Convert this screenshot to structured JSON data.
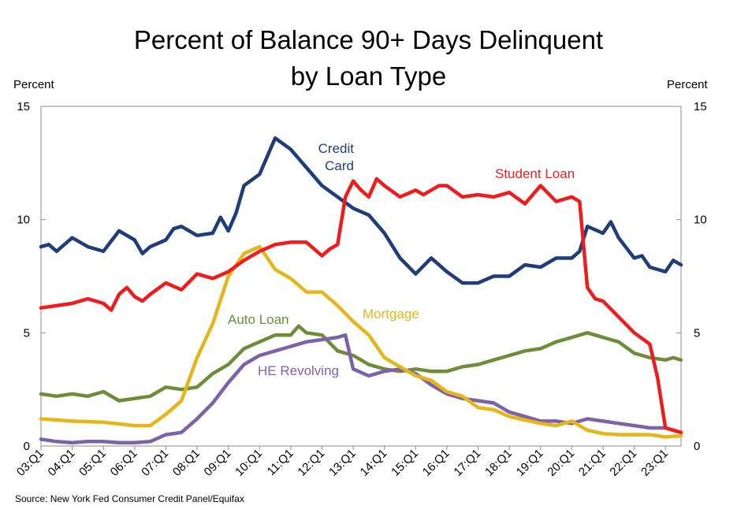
{
  "title_line1": "Percent of Balance 90+ Days Delinquent",
  "title_line2": "by Loan Type",
  "left_axis_unit": "Percent",
  "right_axis_unit": "Percent",
  "source": "Source: New York Fed Consumer Credit Panel/Equifax",
  "chart_data": {
    "type": "line",
    "title": "Percent of Balance 90+ Days Delinquent by Loan Type",
    "ylabel": "Percent",
    "y2label": "Percent",
    "ylim": [
      0,
      15
    ],
    "yticks": [
      0,
      5,
      10,
      15
    ],
    "xlim": [
      "03:Q1",
      "23:Q3"
    ],
    "xticks": [
      "03:Q1",
      "04:Q1",
      "05:Q1",
      "06:Q1",
      "07:Q1",
      "08:Q1",
      "09:Q1",
      "10:Q1",
      "11:Q1",
      "12:Q1",
      "13:Q1",
      "14:Q1",
      "15:Q1",
      "16:Q1",
      "17:Q1",
      "18:Q1",
      "19:Q1",
      "20:Q1",
      "21:Q1",
      "22:Q1",
      "23:Q1"
    ],
    "grid": false,
    "series": [
      {
        "name": "Student Loan",
        "color": "#ee1c1c",
        "points": [
          [
            "03:Q1",
            6.1
          ],
          [
            "03:Q3",
            6.2
          ],
          [
            "04:Q1",
            6.3
          ],
          [
            "04:Q3",
            6.5
          ],
          [
            "05:Q1",
            6.3
          ],
          [
            "05:Q2",
            6.0
          ],
          [
            "05:Q3",
            6.7
          ],
          [
            "05:Q4",
            7.0
          ],
          [
            "06:Q1",
            6.6
          ],
          [
            "06:Q2",
            6.4
          ],
          [
            "06:Q3",
            6.7
          ],
          [
            "07:Q1",
            7.2
          ],
          [
            "07:Q3",
            6.9
          ],
          [
            "08:Q1",
            7.6
          ],
          [
            "08:Q3",
            7.4
          ],
          [
            "09:Q1",
            7.7
          ],
          [
            "09:Q3",
            8.2
          ],
          [
            "10:Q1",
            8.6
          ],
          [
            "10:Q3",
            8.9
          ],
          [
            "11:Q1",
            9.0
          ],
          [
            "11:Q3",
            9.0
          ],
          [
            "12:Q1",
            8.4
          ],
          [
            "12:Q2",
            8.7
          ],
          [
            "12:Q3",
            8.9
          ],
          [
            "12:Q4",
            11.0
          ],
          [
            "13:Q1",
            11.7
          ],
          [
            "13:Q2",
            11.3
          ],
          [
            "13:Q3",
            11.0
          ],
          [
            "13:Q4",
            11.8
          ],
          [
            "14:Q1",
            11.5
          ],
          [
            "14:Q3",
            11.0
          ],
          [
            "15:Q1",
            11.3
          ],
          [
            "15:Q2",
            11.1
          ],
          [
            "15:Q4",
            11.5
          ],
          [
            "16:Q1",
            11.5
          ],
          [
            "16:Q3",
            11.0
          ],
          [
            "17:Q1",
            11.1
          ],
          [
            "17:Q3",
            11.0
          ],
          [
            "18:Q1",
            11.2
          ],
          [
            "18:Q3",
            10.7
          ],
          [
            "19:Q1",
            11.5
          ],
          [
            "19:Q3",
            10.8
          ],
          [
            "20:Q1",
            11.0
          ],
          [
            "20:Q2",
            10.8
          ],
          [
            "20:Q3",
            7.0
          ],
          [
            "20:Q4",
            6.5
          ],
          [
            "21:Q1",
            6.4
          ],
          [
            "21:Q3",
            5.7
          ],
          [
            "22:Q1",
            5.0
          ],
          [
            "22:Q3",
            4.5
          ],
          [
            "22:Q4",
            3.0
          ],
          [
            "23:Q1",
            0.8
          ],
          [
            "23:Q3",
            0.6
          ]
        ]
      },
      {
        "name": "Credit Card",
        "color": "#1f3d7a",
        "points": [
          [
            "03:Q1",
            8.8
          ],
          [
            "03:Q2",
            8.9
          ],
          [
            "03:Q3",
            8.6
          ],
          [
            "04:Q1",
            9.2
          ],
          [
            "04:Q3",
            8.8
          ],
          [
            "05:Q1",
            8.6
          ],
          [
            "05:Q3",
            9.5
          ],
          [
            "06:Q1",
            9.1
          ],
          [
            "06:Q2",
            8.5
          ],
          [
            "06:Q3",
            8.8
          ],
          [
            "07:Q1",
            9.1
          ],
          [
            "07:Q2",
            9.6
          ],
          [
            "07:Q3",
            9.7
          ],
          [
            "08:Q1",
            9.3
          ],
          [
            "08:Q3",
            9.4
          ],
          [
            "08:Q4",
            10.1
          ],
          [
            "09:Q1",
            9.5
          ],
          [
            "09:Q2",
            10.3
          ],
          [
            "09:Q3",
            11.5
          ],
          [
            "10:Q1",
            12.0
          ],
          [
            "10:Q3",
            13.6
          ],
          [
            "11:Q1",
            13.1
          ],
          [
            "11:Q3",
            12.3
          ],
          [
            "12:Q1",
            11.5
          ],
          [
            "12:Q3",
            11.0
          ],
          [
            "13:Q1",
            10.5
          ],
          [
            "13:Q3",
            10.2
          ],
          [
            "14:Q1",
            9.4
          ],
          [
            "14:Q3",
            8.3
          ],
          [
            "15:Q1",
            7.6
          ],
          [
            "15:Q3",
            8.3
          ],
          [
            "16:Q1",
            7.7
          ],
          [
            "16:Q3",
            7.2
          ],
          [
            "17:Q1",
            7.2
          ],
          [
            "17:Q3",
            7.5
          ],
          [
            "18:Q1",
            7.5
          ],
          [
            "18:Q3",
            8.0
          ],
          [
            "19:Q1",
            7.9
          ],
          [
            "19:Q3",
            8.3
          ],
          [
            "20:Q1",
            8.3
          ],
          [
            "20:Q2",
            8.6
          ],
          [
            "20:Q3",
            9.7
          ],
          [
            "21:Q1",
            9.4
          ],
          [
            "21:Q2",
            9.9
          ],
          [
            "21:Q3",
            9.2
          ],
          [
            "22:Q1",
            8.3
          ],
          [
            "22:Q2",
            8.4
          ],
          [
            "22:Q3",
            7.9
          ],
          [
            "23:Q1",
            7.7
          ],
          [
            "23:Q2",
            8.2
          ],
          [
            "23:Q3",
            8.0
          ]
        ]
      },
      {
        "name": "Mortgage",
        "color": "#e4b61a",
        "points": [
          [
            "03:Q1",
            1.2
          ],
          [
            "04:Q1",
            1.1
          ],
          [
            "05:Q1",
            1.05
          ],
          [
            "06:Q1",
            0.9
          ],
          [
            "06:Q3",
            0.9
          ],
          [
            "07:Q1",
            1.4
          ],
          [
            "07:Q3",
            2.0
          ],
          [
            "08:Q1",
            3.9
          ],
          [
            "08:Q3",
            5.4
          ],
          [
            "09:Q1",
            7.5
          ],
          [
            "09:Q3",
            8.5
          ],
          [
            "10:Q1",
            8.8
          ],
          [
            "10:Q3",
            7.8
          ],
          [
            "11:Q1",
            7.4
          ],
          [
            "11:Q3",
            6.8
          ],
          [
            "12:Q1",
            6.8
          ],
          [
            "12:Q3",
            6.2
          ],
          [
            "13:Q1",
            5.5
          ],
          [
            "13:Q3",
            4.9
          ],
          [
            "14:Q1",
            3.9
          ],
          [
            "14:Q3",
            3.5
          ],
          [
            "15:Q1",
            3.1
          ],
          [
            "15:Q3",
            2.9
          ],
          [
            "16:Q1",
            2.4
          ],
          [
            "16:Q3",
            2.2
          ],
          [
            "17:Q1",
            1.7
          ],
          [
            "17:Q3",
            1.6
          ],
          [
            "18:Q1",
            1.3
          ],
          [
            "18:Q3",
            1.15
          ],
          [
            "19:Q1",
            1.0
          ],
          [
            "19:Q3",
            0.9
          ],
          [
            "20:Q1",
            1.1
          ],
          [
            "20:Q3",
            0.7
          ],
          [
            "21:Q1",
            0.55
          ],
          [
            "21:Q3",
            0.5
          ],
          [
            "22:Q1",
            0.5
          ],
          [
            "22:Q3",
            0.5
          ],
          [
            "23:Q1",
            0.4
          ],
          [
            "23:Q3",
            0.45
          ]
        ]
      },
      {
        "name": "Auto Loan",
        "color": "#6e8d3a",
        "points": [
          [
            "03:Q1",
            2.3
          ],
          [
            "03:Q3",
            2.2
          ],
          [
            "04:Q1",
            2.3
          ],
          [
            "04:Q3",
            2.2
          ],
          [
            "05:Q1",
            2.4
          ],
          [
            "05:Q3",
            2.0
          ],
          [
            "06:Q1",
            2.1
          ],
          [
            "06:Q3",
            2.2
          ],
          [
            "07:Q1",
            2.6
          ],
          [
            "07:Q3",
            2.5
          ],
          [
            "08:Q1",
            2.6
          ],
          [
            "08:Q3",
            3.2
          ],
          [
            "09:Q1",
            3.6
          ],
          [
            "09:Q3",
            4.3
          ],
          [
            "10:Q1",
            4.6
          ],
          [
            "10:Q3",
            4.9
          ],
          [
            "11:Q1",
            4.9
          ],
          [
            "11:Q2",
            5.3
          ],
          [
            "11:Q3",
            5.0
          ],
          [
            "12:Q1",
            4.9
          ],
          [
            "12:Q3",
            4.2
          ],
          [
            "13:Q1",
            4.0
          ],
          [
            "13:Q3",
            3.6
          ],
          [
            "14:Q1",
            3.4
          ],
          [
            "14:Q3",
            3.3
          ],
          [
            "15:Q1",
            3.4
          ],
          [
            "15:Q3",
            3.3
          ],
          [
            "16:Q1",
            3.3
          ],
          [
            "16:Q3",
            3.5
          ],
          [
            "17:Q1",
            3.6
          ],
          [
            "17:Q3",
            3.8
          ],
          [
            "18:Q1",
            4.0
          ],
          [
            "18:Q3",
            4.2
          ],
          [
            "19:Q1",
            4.3
          ],
          [
            "19:Q3",
            4.6
          ],
          [
            "20:Q1",
            4.8
          ],
          [
            "20:Q3",
            5.0
          ],
          [
            "21:Q1",
            4.8
          ],
          [
            "21:Q3",
            4.6
          ],
          [
            "22:Q1",
            4.1
          ],
          [
            "22:Q3",
            3.9
          ],
          [
            "23:Q1",
            3.8
          ],
          [
            "23:Q2",
            3.9
          ],
          [
            "23:Q3",
            3.8
          ]
        ]
      },
      {
        "name": "HE Revolving",
        "color": "#7e62a7",
        "points": [
          [
            "03:Q1",
            0.3
          ],
          [
            "03:Q3",
            0.2
          ],
          [
            "04:Q1",
            0.15
          ],
          [
            "04:Q3",
            0.2
          ],
          [
            "05:Q1",
            0.2
          ],
          [
            "05:Q3",
            0.15
          ],
          [
            "06:Q1",
            0.15
          ],
          [
            "06:Q3",
            0.2
          ],
          [
            "07:Q1",
            0.5
          ],
          [
            "07:Q3",
            0.6
          ],
          [
            "08:Q1",
            1.2
          ],
          [
            "08:Q3",
            1.9
          ],
          [
            "09:Q1",
            2.8
          ],
          [
            "09:Q3",
            3.6
          ],
          [
            "10:Q1",
            4.0
          ],
          [
            "10:Q3",
            4.2
          ],
          [
            "11:Q1",
            4.4
          ],
          [
            "11:Q3",
            4.6
          ],
          [
            "12:Q1",
            4.7
          ],
          [
            "12:Q3",
            4.8
          ],
          [
            "12:Q4",
            4.9
          ],
          [
            "13:Q1",
            3.4
          ],
          [
            "13:Q3",
            3.1
          ],
          [
            "14:Q1",
            3.3
          ],
          [
            "14:Q3",
            3.4
          ],
          [
            "15:Q1",
            3.2
          ],
          [
            "15:Q3",
            2.7
          ],
          [
            "16:Q1",
            2.3
          ],
          [
            "16:Q3",
            2.1
          ],
          [
            "17:Q1",
            2.0
          ],
          [
            "17:Q3",
            1.9
          ],
          [
            "18:Q1",
            1.5
          ],
          [
            "18:Q3",
            1.3
          ],
          [
            "19:Q1",
            1.1
          ],
          [
            "19:Q3",
            1.1
          ],
          [
            "20:Q1",
            1.0
          ],
          [
            "20:Q3",
            1.2
          ],
          [
            "21:Q1",
            1.1
          ],
          [
            "21:Q3",
            1.0
          ],
          [
            "22:Q1",
            0.9
          ],
          [
            "22:Q3",
            0.8
          ],
          [
            "23:Q1",
            0.8
          ],
          [
            "23:Q3",
            0.6
          ]
        ]
      }
    ],
    "annotations": [
      {
        "series": "Credit Card",
        "lines": [
          "Credit",
          "Card"
        ]
      },
      {
        "series": "Student Loan",
        "lines": [
          "Student Loan"
        ]
      },
      {
        "series": "Mortgage",
        "lines": [
          "Mortgage"
        ]
      },
      {
        "series": "Auto Loan",
        "lines": [
          "Auto Loan"
        ]
      },
      {
        "series": "HE Revolving",
        "lines": [
          "HE Revolving"
        ]
      }
    ]
  }
}
